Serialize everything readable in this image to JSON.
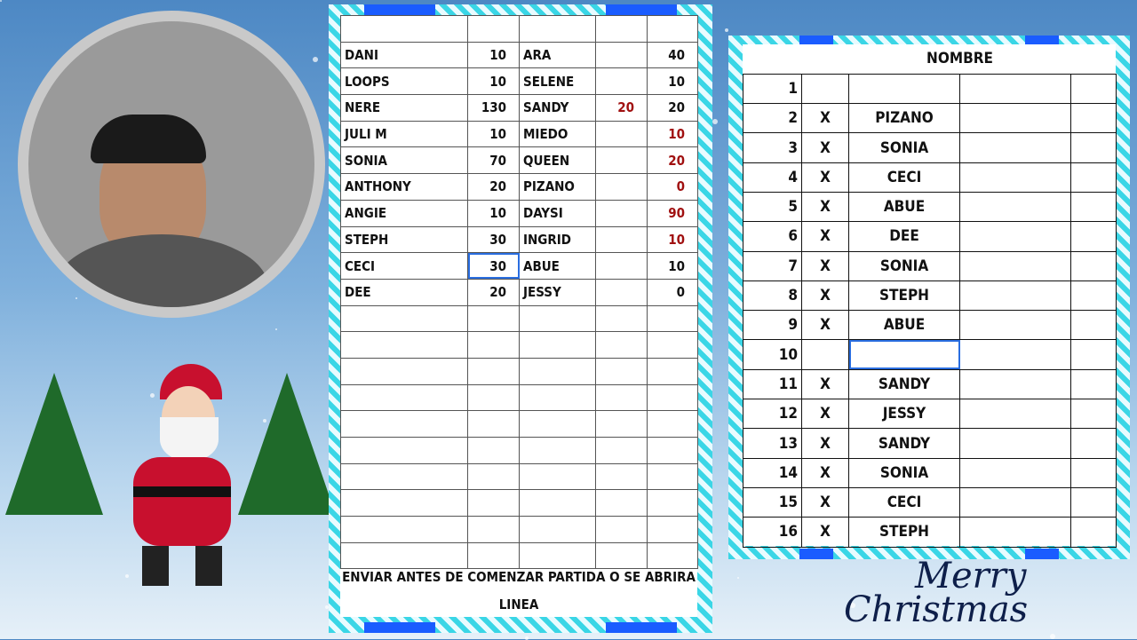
{
  "scores": {
    "rows": [
      {
        "name": "DANI",
        "value": "10",
        "name2": "ARA",
        "extra": "",
        "value2": "40",
        "value2_red": false
      },
      {
        "name": "LOOPS",
        "value": "10",
        "name2": "SELENE",
        "extra": "",
        "value2": "10",
        "value2_red": false
      },
      {
        "name": "NERE",
        "value": "130",
        "name2": "SANDY",
        "extra": "20",
        "value2": "20",
        "value2_red": false
      },
      {
        "name": "JULI M",
        "value": "10",
        "name2": "MIEDO",
        "extra": "",
        "value2": "10",
        "value2_red": true
      },
      {
        "name": "SONIA",
        "value": "70",
        "name2": "QUEEN",
        "extra": "",
        "value2": "20",
        "value2_red": true
      },
      {
        "name": "ANTHONY",
        "value": "20",
        "name2": "PIZANO",
        "extra": "",
        "value2": "0",
        "value2_red": true
      },
      {
        "name": "ANGIE",
        "value": "10",
        "name2": "DAYSI",
        "extra": "",
        "value2": "90",
        "value2_red": true
      },
      {
        "name": "STEPH",
        "value": "30",
        "name2": "INGRID",
        "extra": "",
        "value2": "10",
        "value2_red": true
      },
      {
        "name": "CECI",
        "value": "30",
        "name2": "ABUE",
        "extra": "",
        "value2": "10",
        "value2_red": false
      },
      {
        "name": "DEE",
        "value": "20",
        "name2": "JESSY",
        "extra": "",
        "value2": "0",
        "value2_red": false
      }
    ],
    "footer_line1": "ENVIAR ANTES DE COMENZAR PARTIDA O SE ABRIRA",
    "footer_line2": "LINEA"
  },
  "list": {
    "header": "NOMBRE",
    "rows": [
      {
        "n": "1",
        "mark": "",
        "name": ""
      },
      {
        "n": "2",
        "mark": "X",
        "name": "PIZANO"
      },
      {
        "n": "3",
        "mark": "X",
        "name": "SONIA"
      },
      {
        "n": "4",
        "mark": "X",
        "name": "CECI"
      },
      {
        "n": "5",
        "mark": "X",
        "name": "ABUE"
      },
      {
        "n": "6",
        "mark": "X",
        "name": "DEE"
      },
      {
        "n": "7",
        "mark": "X",
        "name": "SONIA"
      },
      {
        "n": "8",
        "mark": "X",
        "name": "STEPH"
      },
      {
        "n": "9",
        "mark": "X",
        "name": "ABUE"
      },
      {
        "n": "10",
        "mark": "",
        "name": ""
      },
      {
        "n": "11",
        "mark": "X",
        "name": "SANDY"
      },
      {
        "n": "12",
        "mark": "X",
        "name": "JESSY"
      },
      {
        "n": "13",
        "mark": "X",
        "name": "SANDY"
      },
      {
        "n": "14",
        "mark": "X",
        "name": "SONIA"
      },
      {
        "n": "15",
        "mark": "X",
        "name": "CECI"
      },
      {
        "n": "16",
        "mark": "X",
        "name": "STEPH"
      }
    ]
  },
  "decor": {
    "greeting_line1": "Merry",
    "greeting_line2": "Christmas"
  },
  "colors": {
    "red_value": "#a01010",
    "selection": "#2a6ee0",
    "frame": "#3ad6e6"
  }
}
